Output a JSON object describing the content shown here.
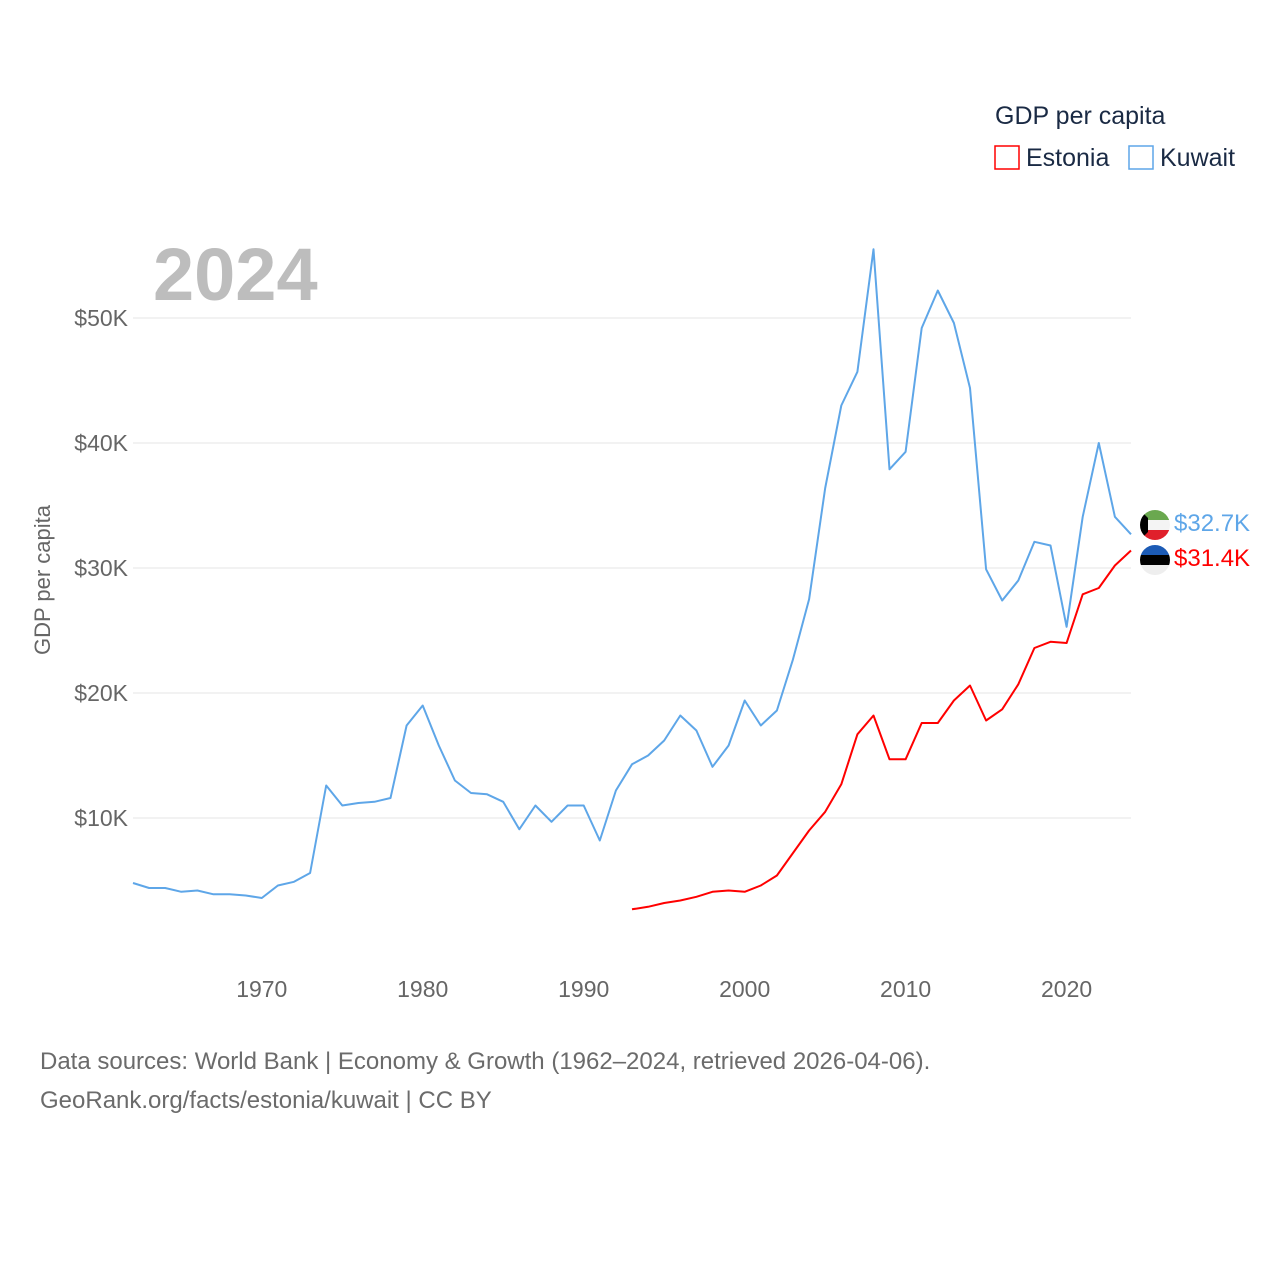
{
  "chart_data": {
    "type": "line",
    "title": "GDP per capita",
    "year_label": "2024",
    "ylabel": "GDP per capita",
    "xlabel": "",
    "xlim": [
      1962,
      2024
    ],
    "ylim": [
      0,
      57000
    ],
    "yticks": [
      {
        "v": 10000,
        "label": "$10K"
      },
      {
        "v": 20000,
        "label": "$20K"
      },
      {
        "v": 30000,
        "label": "$30K"
      },
      {
        "v": 40000,
        "label": "$40K"
      },
      {
        "v": 50000,
        "label": "$50K"
      }
    ],
    "xticks": [
      1970,
      1980,
      1990,
      2000,
      2010,
      2020
    ],
    "grid": true,
    "legend_placement": "top-right",
    "series": [
      {
        "name": "Estonia",
        "color": "#ff0000",
        "end_label": "$31.4K",
        "start_year": 1993,
        "values": [
          2.7,
          2.9,
          3.2,
          3.4,
          3.7,
          4.1,
          4.2,
          4.1,
          4.6,
          5.4,
          7.2,
          9.0,
          10.5,
          12.7,
          16.7,
          18.2,
          14.7,
          14.7,
          17.6,
          17.6,
          19.4,
          20.6,
          17.8,
          18.7,
          20.7,
          23.6,
          24.1,
          24.0,
          27.9,
          28.4,
          30.2,
          31.4
        ]
      },
      {
        "name": "Kuwait",
        "color": "#5ea6e8",
        "end_label": "$32.7K",
        "start_year": 1962,
        "values": [
          4.8,
          4.4,
          4.4,
          4.1,
          4.2,
          3.9,
          3.9,
          3.8,
          3.6,
          4.6,
          4.9,
          5.6,
          12.6,
          11.0,
          11.2,
          11.3,
          11.6,
          17.4,
          19.0,
          15.8,
          13.0,
          12.0,
          11.9,
          11.3,
          9.1,
          11.0,
          9.7,
          11.0,
          11.0,
          8.2,
          12.2,
          14.3,
          15.0,
          16.2,
          18.2,
          17.0,
          14.1,
          15.8,
          19.4,
          17.4,
          18.6,
          22.7,
          27.5,
          36.4,
          43.0,
          45.7,
          55.5,
          37.9,
          39.3,
          49.2,
          52.2,
          49.6,
          44.4,
          29.9,
          27.4,
          29.0,
          32.1,
          31.8,
          25.3,
          34.1,
          40.0,
          34.1,
          32.7
        ]
      }
    ],
    "value_unit": "thousand USD"
  },
  "footer": {
    "line1": "Data sources: World Bank | Economy & Growth (1962–2024, retrieved 2026-04-06).",
    "line2": "GeoRank.org/facts/estonia/kuwait | CC BY"
  }
}
